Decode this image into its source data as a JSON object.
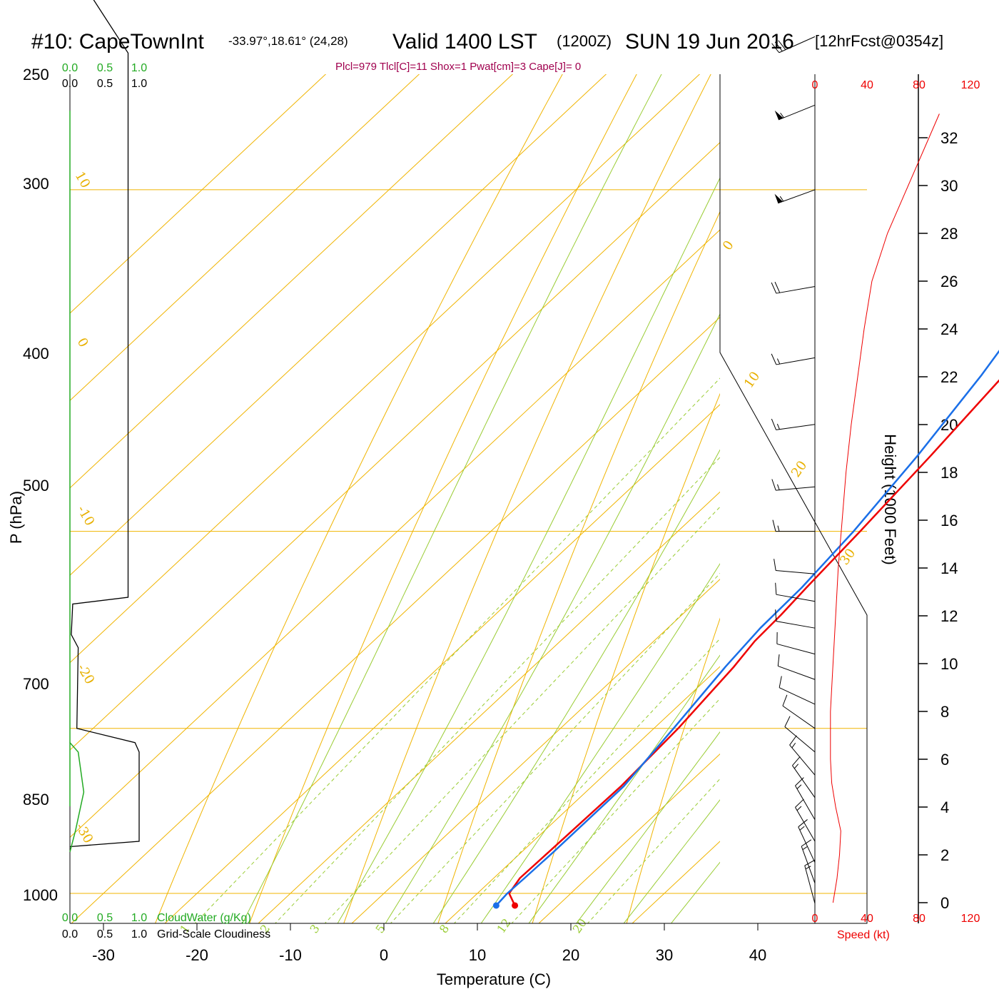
{
  "title": {
    "station": "#10: CapeTownInt",
    "coords": "-33.97°,18.61° (24,28)",
    "valid": "Valid 1400 LST",
    "zulu": "(1200Z)",
    "date": "SUN 19 Jun 2016",
    "forecast": "[12hrFcst@0354z]"
  },
  "stats_line": "Plcl=979 Tlcl[C]=11 Shox=1 Pwat[cm]=3 Cape[J]= 0",
  "left_panel": {
    "cloudwater_ticks": [
      "0.0",
      "0.5",
      "1.0"
    ],
    "cloudiness_ticks": [
      "0.0",
      "0.5",
      "1.0"
    ],
    "cloudwater_label": "CloudWater (g/Kg)",
    "cloudiness_label": "Grid-Scale Cloudiness"
  },
  "speed_panel": {
    "ticks": [
      "0",
      "40",
      "80",
      "120"
    ],
    "label": "Speed (kt)",
    "color": "#ee0000"
  },
  "colors": {
    "temperature": "#ee0000",
    "dewpoint": "#1a6fe8",
    "isotherm": "#f0b400",
    "mixing_ratio": "#99cc33",
    "cloudwater": "#22aa22"
  },
  "chart_data": {
    "type": "line",
    "subtype": "skew-T log-P sounding",
    "xlabel": "Temperature (C)",
    "ylabel": "P (hPa)",
    "y2label": "Height (1000 Feet)",
    "x_ticks": [
      -30,
      -20,
      -10,
      0,
      10,
      20,
      30,
      40
    ],
    "p_ticks": [
      250,
      300,
      400,
      500,
      700,
      850,
      1000
    ],
    "height_ticks": [
      0,
      2,
      4,
      6,
      8,
      10,
      12,
      14,
      16,
      18,
      20,
      22,
      24,
      26,
      28,
      30,
      32
    ],
    "p_range": [
      250,
      1020
    ],
    "grid": true,
    "isotherm_labels": [
      "10",
      "0",
      "-10",
      "-20",
      "-30",
      "0",
      "10",
      "20",
      "30"
    ],
    "mixing_ratio_labels": [
      "1",
      "2",
      "3",
      "5",
      "8",
      "12",
      "20"
    ],
    "series": [
      {
        "name": "Temperature",
        "points": [
          [
            1012,
            15.4
          ],
          [
            1000,
            13.4
          ],
          [
            985,
            12.8
          ],
          [
            960,
            12.9
          ],
          [
            900,
            13.1
          ],
          [
            850,
            12.6
          ],
          [
            800,
            11.5
          ],
          [
            780,
            10.8
          ],
          [
            760,
            10.6
          ],
          [
            740,
            10.2
          ],
          [
            700,
            9.5
          ],
          [
            650,
            8.4
          ],
          [
            600,
            7.0
          ],
          [
            550,
            5.0
          ],
          [
            500,
            3.0
          ],
          [
            450,
            0.4
          ],
          [
            400,
            -2.2
          ],
          [
            350,
            -4.8
          ],
          [
            330,
            -5.8
          ],
          [
            300,
            -6.6
          ],
          [
            270,
            -7.5
          ]
        ]
      },
      {
        "name": "Dewpoint",
        "points": [
          [
            1012,
            13.4
          ],
          [
            1000,
            13.2
          ],
          [
            985,
            13.3
          ],
          [
            960,
            13.4
          ],
          [
            900,
            13.4
          ],
          [
            850,
            12.1
          ],
          [
            800,
            10.6
          ],
          [
            770,
            9.9
          ],
          [
            740,
            9.7
          ],
          [
            700,
            8.8
          ],
          [
            650,
            7.0
          ],
          [
            600,
            4.6
          ],
          [
            550,
            1.4
          ],
          [
            500,
            -2.6
          ],
          [
            450,
            -6.6
          ],
          [
            430,
            -8.0
          ],
          [
            400,
            -18.0
          ],
          [
            370,
            -28.0
          ],
          [
            350,
            -31.6
          ],
          [
            330,
            -31.0
          ],
          [
            300,
            -31.0
          ],
          [
            270,
            -30.2
          ]
        ]
      }
    ],
    "wind_profile_kt": [
      [
        0,
        14
      ],
      [
        1,
        17
      ],
      [
        2,
        19
      ],
      [
        3,
        20
      ],
      [
        4,
        16
      ],
      [
        5,
        13
      ],
      [
        6,
        12
      ],
      [
        7,
        12
      ],
      [
        8,
        12
      ],
      [
        10,
        14
      ],
      [
        12,
        16
      ],
      [
        14,
        18
      ],
      [
        16,
        21
      ],
      [
        18,
        24
      ],
      [
        20,
        28
      ],
      [
        22,
        33
      ],
      [
        24,
        38
      ],
      [
        26,
        44
      ],
      [
        28,
        56
      ],
      [
        30,
        72
      ],
      [
        32,
        88
      ],
      [
        33,
        96
      ]
    ],
    "cloud_fraction_profile": [
      [
        400,
        0.0
      ],
      [
        437,
        0.42
      ],
      [
        500,
        0.42
      ],
      [
        700,
        0.42
      ],
      [
        747,
        0.42
      ],
      [
        752,
        0.02
      ],
      [
        775,
        0.01
      ],
      [
        785,
        0.06
      ],
      [
        850,
        0.05
      ],
      [
        862,
        0.47
      ],
      [
        870,
        0.5
      ],
      [
        950,
        0.5
      ],
      [
        955,
        0.0
      ]
    ],
    "cloudwater_profile": [
      [
        862,
        0.0
      ],
      [
        870,
        0.06
      ],
      [
        905,
        0.1
      ],
      [
        940,
        0.04
      ],
      [
        960,
        0.0
      ]
    ],
    "wind_barbs": [
      {
        "p": 1010,
        "dir": 165,
        "spd": 15
      },
      {
        "p": 990,
        "dir": 160,
        "spd": 17
      },
      {
        "p": 970,
        "dir": 155,
        "spd": 18
      },
      {
        "p": 950,
        "dir": 150,
        "spd": 19
      },
      {
        "p": 930,
        "dir": 150,
        "spd": 18
      },
      {
        "p": 910,
        "dir": 145,
        "spd": 17
      },
      {
        "p": 890,
        "dir": 140,
        "spd": 15
      },
      {
        "p": 870,
        "dir": 130,
        "spd": 14
      },
      {
        "p": 850,
        "dir": 125,
        "spd": 13
      },
      {
        "p": 830,
        "dir": 115,
        "spd": 12
      },
      {
        "p": 810,
        "dir": 110,
        "spd": 12
      },
      {
        "p": 790,
        "dir": 105,
        "spd": 12
      },
      {
        "p": 770,
        "dir": 100,
        "spd": 12
      },
      {
        "p": 750,
        "dir": 100,
        "spd": 13
      },
      {
        "p": 730,
        "dir": 95,
        "spd": 14
      },
      {
        "p": 700,
        "dir": 90,
        "spd": 15
      },
      {
        "p": 670,
        "dir": 85,
        "spd": 16
      },
      {
        "p": 630,
        "dir": 82,
        "spd": 17
      },
      {
        "p": 590,
        "dir": 80,
        "spd": 19
      },
      {
        "p": 550,
        "dir": 80,
        "spd": 22
      },
      {
        "p": 500,
        "dir": 70,
        "spd": 55
      },
      {
        "p": 460,
        "dir": 68,
        "spd": 55
      },
      {
        "p": 430,
        "dir": 66,
        "spd": 30
      },
      {
        "p": 400,
        "dir": 66,
        "spd": 60
      },
      {
        "p": 370,
        "dir": 70,
        "spd": 70
      },
      {
        "p": 345,
        "dir": 72,
        "spd": 75
      },
      {
        "p": 320,
        "dir": 76,
        "spd": 75
      },
      {
        "p": 300,
        "dir": 70,
        "spd": 100
      },
      {
        "p": 280,
        "dir": 72,
        "spd": 110
      },
      {
        "p": 262,
        "dir": 74,
        "spd": 115
      }
    ]
  }
}
